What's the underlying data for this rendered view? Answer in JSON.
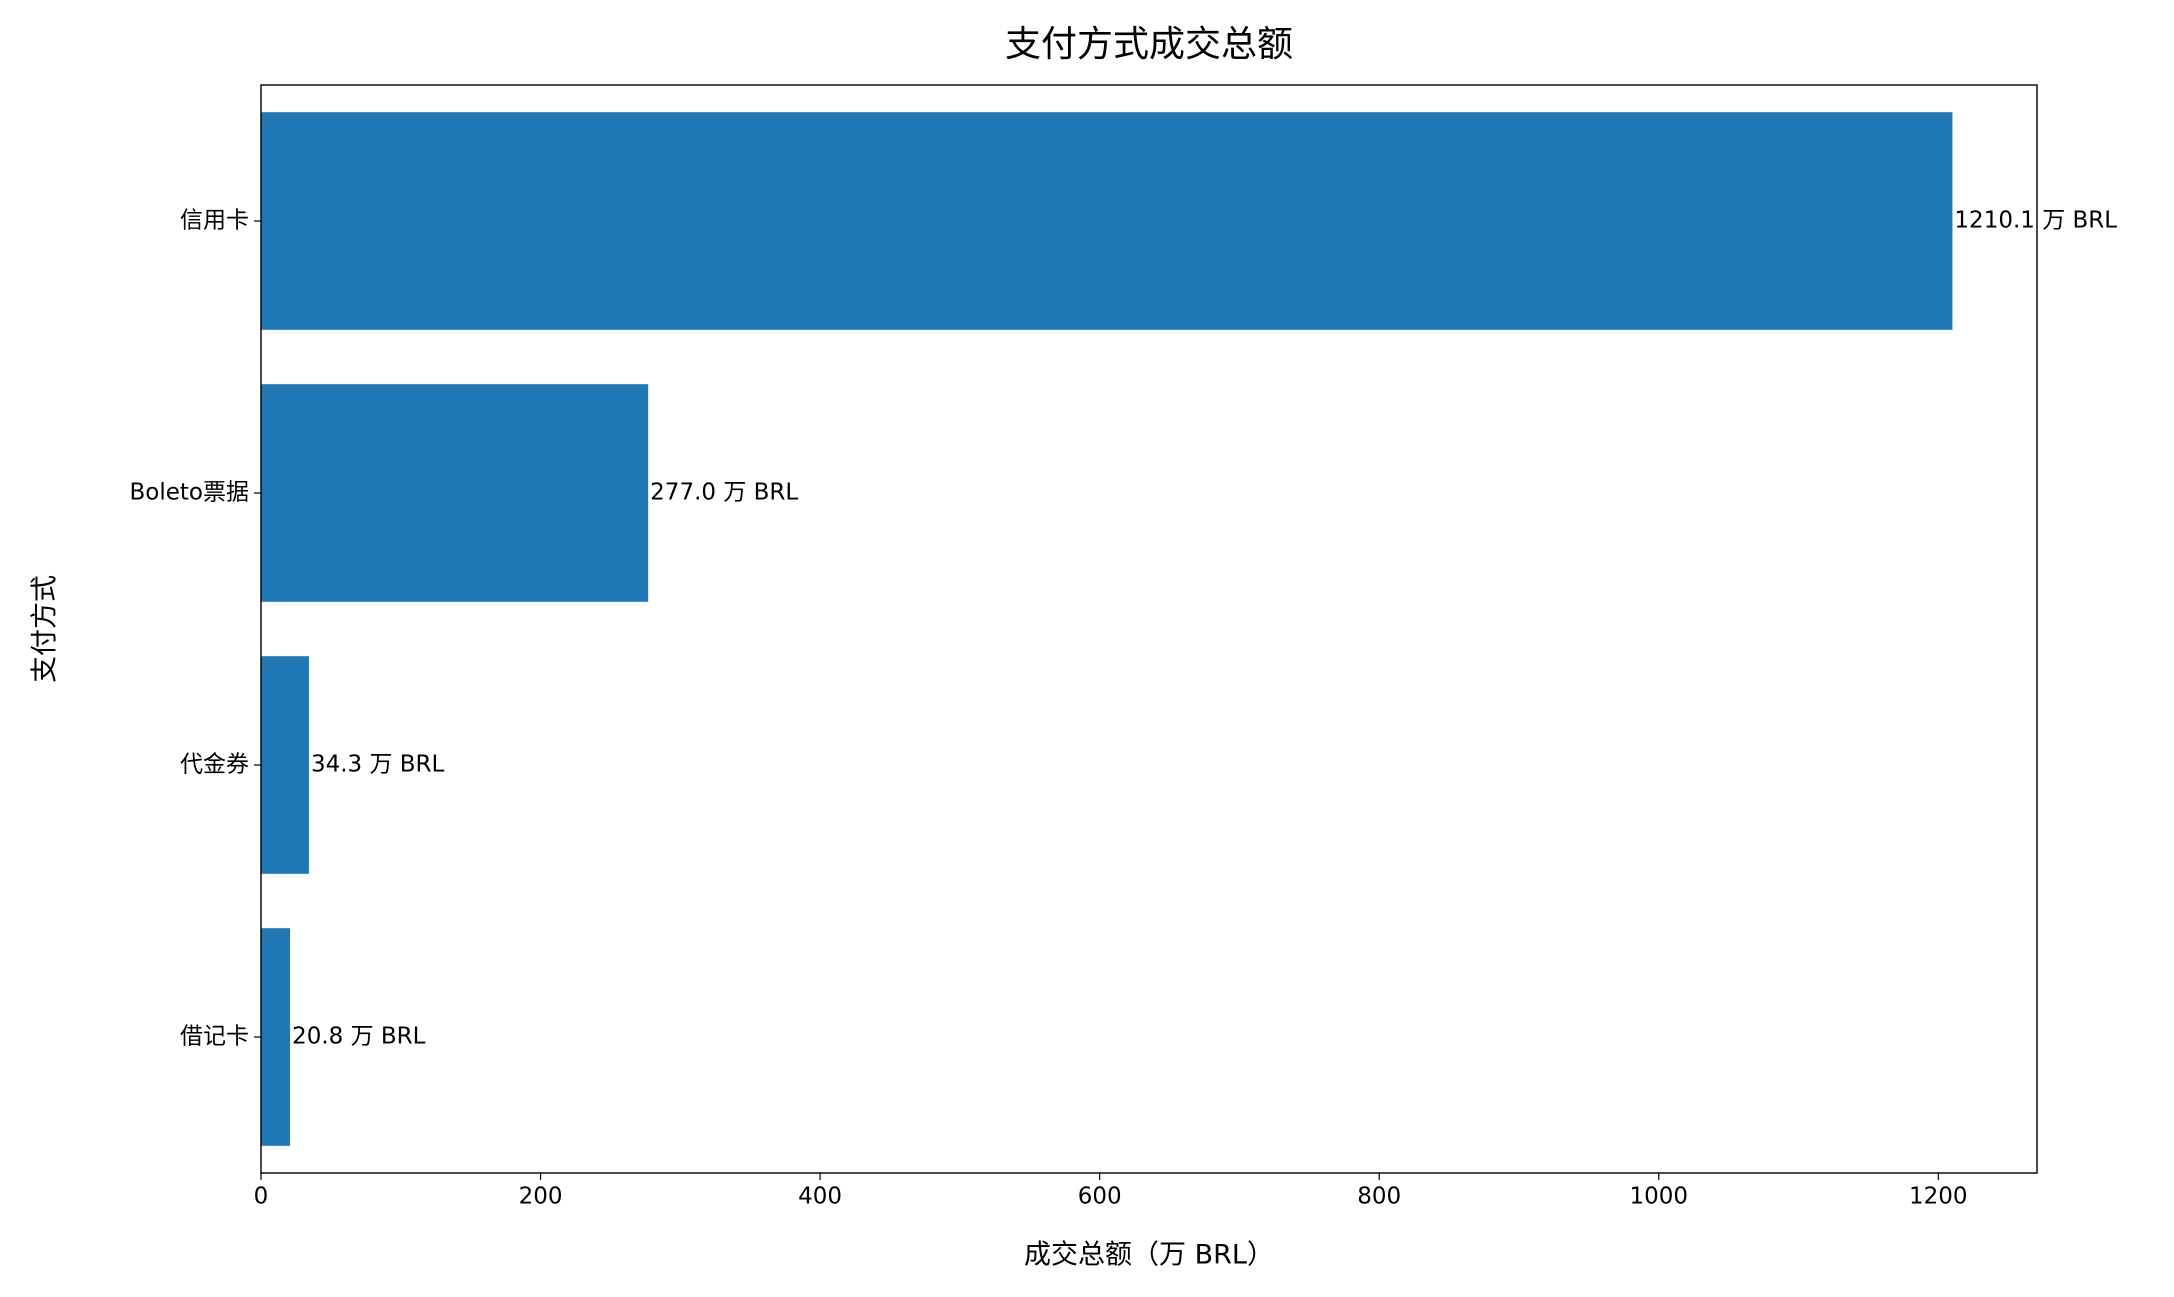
{
  "chart_data": {
    "type": "barh",
    "title": "支付方式成交总额",
    "x_label": "成交总额（万 BRL）",
    "y_label": "支付方式",
    "categories": [
      "信用卡",
      "Boleto票据",
      "代金券",
      "借记卡"
    ],
    "values": [
      1210.1,
      277.0,
      34.3,
      20.8
    ],
    "value_labels": [
      "1210.1 万 BRL",
      "277.0 万 BRL",
      "34.3 万 BRL",
      "20.8 万 BRL"
    ],
    "color": "#1f77b4",
    "xlim": [
      0,
      1270.6
    ],
    "xticks": [
      0,
      200,
      400,
      600,
      800,
      1000,
      1200
    ],
    "grid": false
  }
}
